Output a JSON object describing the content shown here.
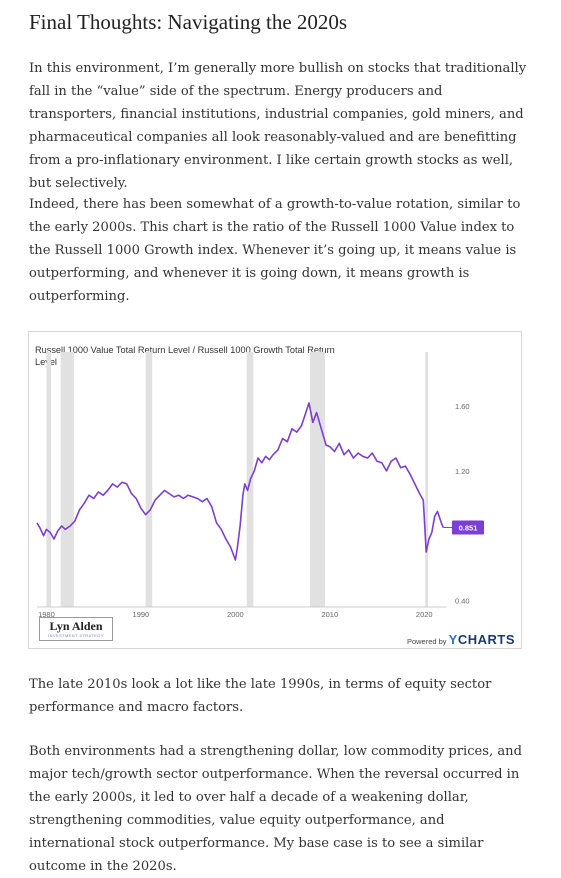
{
  "article": {
    "heading": "Final Thoughts: Navigating the 2020s",
    "paragraphs": [
      "In this environment, I’m generally more bullish on stocks that traditionally fall in the “value” side of the spectrum. Energy producers and transporters, financial institutions, industrial companies, gold miners, and pharmaceutical companies all look reasonably-valued and are benefitting from a pro-inflationary environment. I like certain growth stocks as well, but selectively.",
      "Indeed, there has been somewhat of a growth-to-value rotation, similar to the early 2000s. This chart is the ratio of the Russell 1000 Value index to the Russell 1000 Growth index. Whenever it’s going up, it means value is outperforming, and whenever it is going down, it means growth is outperforming.",
      "The late 2010s look a lot like the late 1990s, in terms of equity sector performance and macro factors.",
      "Both environments had a strengthening dollar, low commodity prices, and major tech/growth sector outperformance. When the reversal occurred in the early 2000s, it led to over half a decade of a weakening dollar, strengthening commodities, value equity outperformance, and international stock outperformance. My base case is to see a similar outcome in the 2020s."
    ]
  },
  "branding": {
    "logo_name": "Lyn Alden",
    "logo_sub": "INVESTMENT STRATEGY",
    "powered_by": "Powered by",
    "ycharts_y": "Y",
    "ycharts_rest": "CHARTS"
  },
  "chart_data": {
    "type": "line",
    "title": "Russell 1000 Value Total Return Level / Russell 1000 Growth Total Return Level",
    "xlabel": "",
    "ylabel": "",
    "xlim": [
      1979,
      2022.3
    ],
    "ylim": [
      0.36,
      1.78
    ],
    "x_ticks": [
      1980,
      1990,
      2000,
      2010,
      2020
    ],
    "x_tick_labels": [
      "1980",
      "1990",
      "2000",
      "2010",
      "2020"
    ],
    "y_ticks": [
      0.4,
      1.2,
      1.6
    ],
    "y_tick_labels": [
      "0.40",
      "1.20",
      "1.60"
    ],
    "last_value_label": "0.851",
    "line_color": "#7b3fd1",
    "recessions": [
      [
        1980.0,
        1980.5
      ],
      [
        1981.5,
        1982.9
      ],
      [
        1990.5,
        1991.2
      ],
      [
        2001.2,
        2001.9
      ],
      [
        2007.9,
        2009.5
      ],
      [
        2020.1,
        2020.4
      ]
    ],
    "grid": false,
    "legend": "none",
    "series": [
      {
        "name": "",
        "x": [
          1979.0,
          1979.3,
          1979.7,
          1980.0,
          1980.4,
          1980.8,
          1981.2,
          1981.6,
          1982.0,
          1982.5,
          1983.0,
          1983.5,
          1984.0,
          1984.5,
          1985.0,
          1985.5,
          1986.0,
          1986.5,
          1987.0,
          1987.5,
          1988.0,
          1988.5,
          1989.0,
          1989.5,
          1990.0,
          1990.5,
          1991.0,
          1991.5,
          1992.0,
          1992.5,
          1993.0,
          1993.5,
          1994.0,
          1994.5,
          1995.0,
          1995.5,
          1996.0,
          1996.5,
          1997.0,
          1997.5,
          1998.0,
          1998.5,
          1999.0,
          1999.5,
          2000.0,
          2000.2,
          2000.5,
          2000.8,
          2001.0,
          2001.3,
          2001.6,
          2002.0,
          2002.4,
          2002.8,
          2003.2,
          2003.6,
          2004.0,
          2004.5,
          2005.0,
          2005.5,
          2006.0,
          2006.5,
          2007.0,
          2007.4,
          2007.8,
          2008.2,
          2008.6,
          2009.0,
          2009.3,
          2009.6,
          2010.0,
          2010.5,
          2011.0,
          2011.5,
          2012.0,
          2012.5,
          2013.0,
          2013.5,
          2014.0,
          2014.5,
          2015.0,
          2015.5,
          2016.0,
          2016.5,
          2017.0,
          2017.5,
          2018.0,
          2018.5,
          2019.0,
          2019.5,
          2019.9,
          2020.2,
          2020.5,
          2020.8,
          2021.1,
          2021.4,
          2021.8,
          2022.0
        ],
        "y": [
          0.88,
          0.85,
          0.8,
          0.84,
          0.82,
          0.78,
          0.83,
          0.86,
          0.84,
          0.86,
          0.89,
          0.96,
          1.0,
          1.05,
          1.03,
          1.07,
          1.05,
          1.08,
          1.12,
          1.1,
          1.13,
          1.12,
          1.06,
          1.03,
          0.97,
          0.93,
          0.96,
          1.02,
          1.05,
          1.08,
          1.06,
          1.04,
          1.05,
          1.03,
          1.05,
          1.04,
          1.03,
          1.01,
          1.03,
          0.98,
          0.88,
          0.84,
          0.78,
          0.73,
          0.65,
          0.72,
          0.86,
          1.05,
          1.12,
          1.08,
          1.15,
          1.2,
          1.28,
          1.25,
          1.29,
          1.27,
          1.3,
          1.33,
          1.4,
          1.38,
          1.46,
          1.44,
          1.48,
          1.55,
          1.62,
          1.5,
          1.56,
          1.48,
          1.42,
          1.36,
          1.35,
          1.32,
          1.37,
          1.3,
          1.33,
          1.28,
          1.31,
          1.29,
          1.28,
          1.31,
          1.26,
          1.25,
          1.2,
          1.26,
          1.28,
          1.22,
          1.23,
          1.18,
          1.12,
          1.06,
          1.02,
          0.7,
          0.78,
          0.82,
          0.92,
          0.95,
          0.88,
          0.851
        ]
      }
    ]
  }
}
